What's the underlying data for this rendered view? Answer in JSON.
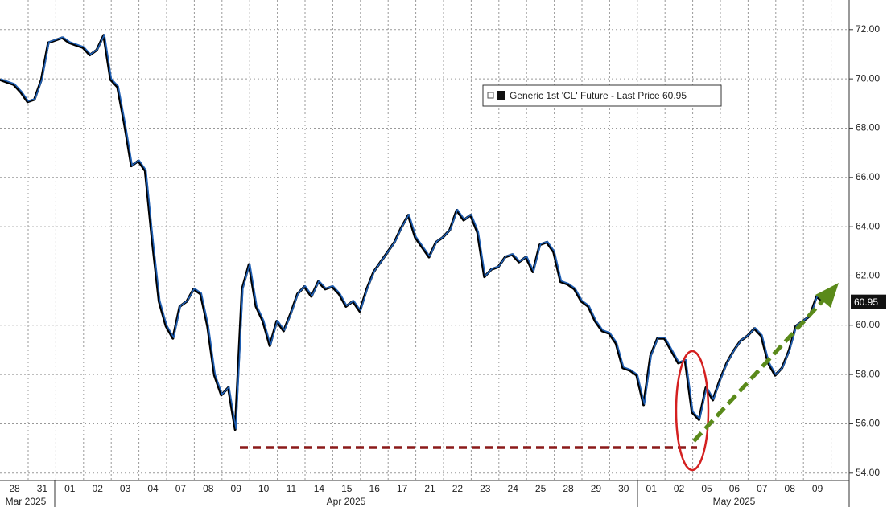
{
  "chart_data": {
    "type": "line",
    "categories": [
      null,
      null,
      "28",
      null,
      null,
      null,
      "31",
      null,
      null,
      null,
      "01",
      null,
      null,
      null,
      "02",
      null,
      null,
      null,
      "03",
      null,
      null,
      null,
      "04",
      null,
      null,
      null,
      "07",
      null,
      null,
      null,
      "08",
      null,
      null,
      null,
      "09",
      null,
      null,
      null,
      "10",
      null,
      null,
      null,
      "11",
      null,
      null,
      null,
      "14",
      null,
      null,
      null,
      "15",
      null,
      null,
      null,
      "16",
      null,
      null,
      null,
      "17",
      null,
      null,
      null,
      "21",
      null,
      null,
      null,
      "22",
      null,
      null,
      null,
      "23",
      null,
      null,
      null,
      "24",
      null,
      null,
      null,
      "25",
      null,
      null,
      null,
      "28",
      null,
      null,
      null,
      "29",
      null,
      null,
      null,
      "30",
      null,
      null,
      null,
      "01",
      null,
      null,
      null,
      "02",
      null,
      null,
      null,
      "05",
      null,
      null,
      null,
      "06",
      null,
      null,
      null,
      "07",
      null,
      null,
      null,
      "08",
      null,
      null,
      null,
      "09",
      null
    ],
    "months": [
      "Mar 2025",
      "Apr 2025",
      "May 2025"
    ],
    "series": [
      {
        "name": "Generic 1st 'CL' Future - Last Price 60.95",
        "color": "#1f5fb4",
        "values": [
          70.0,
          69.9,
          69.8,
          69.5,
          69.1,
          69.2,
          70.0,
          71.5,
          71.6,
          71.7,
          71.5,
          71.4,
          71.3,
          71.0,
          71.2,
          71.8,
          70.0,
          69.7,
          68.2,
          66.5,
          66.7,
          66.3,
          63.5,
          61.0,
          60.0,
          59.5,
          60.8,
          61.0,
          61.5,
          61.3,
          60.0,
          58.0,
          57.2,
          57.5,
          55.8,
          61.5,
          62.5,
          60.8,
          60.2,
          59.2,
          60.2,
          59.8,
          60.5,
          61.3,
          61.6,
          61.2,
          61.8,
          61.5,
          61.6,
          61.3,
          60.8,
          61.0,
          60.6,
          61.5,
          62.2,
          62.6,
          63.0,
          63.4,
          64.0,
          64.5,
          63.6,
          63.2,
          62.8,
          63.4,
          63.6,
          63.9,
          64.7,
          64.3,
          64.5,
          63.8,
          62.0,
          62.3,
          62.4,
          62.8,
          62.9,
          62.6,
          62.8,
          62.2,
          63.3,
          63.4,
          63.0,
          61.8,
          61.7,
          61.5,
          61.0,
          60.8,
          60.2,
          59.8,
          59.7,
          59.3,
          58.3,
          58.2,
          58.0,
          56.8,
          58.8,
          59.5,
          59.5,
          59.0,
          58.5,
          58.6,
          56.5,
          56.2,
          57.5,
          57.0,
          57.8,
          58.5,
          59.0,
          59.4,
          59.6,
          59.9,
          59.6,
          58.5,
          58.0,
          58.3,
          59.0,
          60.0,
          60.2,
          60.4,
          61.2,
          60.95
        ]
      }
    ],
    "last_value": 60.95,
    "ylim": [
      53.7,
      73.2
    ],
    "yticks": [
      {
        "value": 54,
        "label": "54.00"
      },
      {
        "value": 56,
        "label": "56.00"
      },
      {
        "value": 58,
        "label": "58.00"
      },
      {
        "value": 60,
        "label": "60.00"
      },
      {
        "value": 62,
        "label": "62.00"
      },
      {
        "value": 64,
        "label": "64.00"
      },
      {
        "value": 66,
        "label": "66.00"
      },
      {
        "value": 68,
        "label": "68.00"
      },
      {
        "value": 70,
        "label": "70.00"
      },
      {
        "value": 72,
        "label": "72.00"
      }
    ],
    "grid": true
  }
}
